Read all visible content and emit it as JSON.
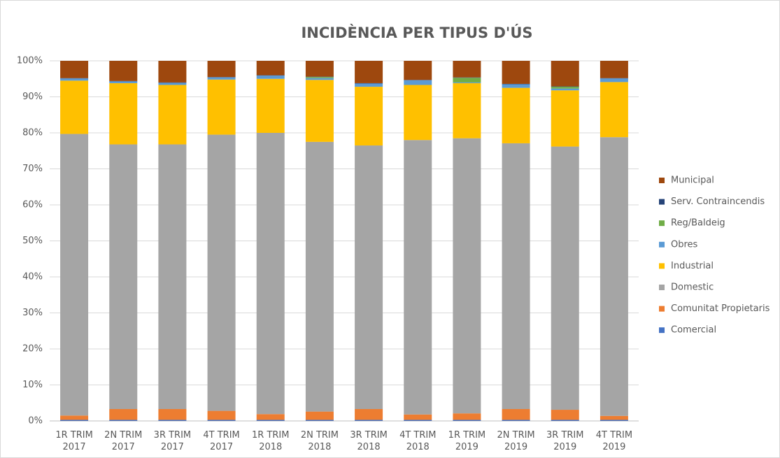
{
  "chart_data": {
    "type": "stacked_bar",
    "title": "INCIDÈNCIA PER TIPUS D'ÚS",
    "categories": [
      "1R TRIM 2017",
      "2N TRIM 2017",
      "3R TRIM 2017",
      "4T TRIM 2017",
      "1R TRIM 2018",
      "2N TRIM 2018",
      "3R TRIM 2018",
      "4T TRIM 2018",
      "1R TRIM 2019",
      "2N TRIM 2019",
      "3R TRIM 2019",
      "4T TRIM 2019"
    ],
    "series": [
      {
        "name": "Comercial",
        "color": "#4472c4",
        "values": [
          0.3,
          0.3,
          0.3,
          0.3,
          0.3,
          0.3,
          0.3,
          0.3,
          0.3,
          0.3,
          0.3,
          0.3
        ]
      },
      {
        "name": "Comunitat Propietaris",
        "color": "#ed7d31",
        "values": [
          1.2,
          3.0,
          3.0,
          2.5,
          1.6,
          2.3,
          3.0,
          1.5,
          1.8,
          3.0,
          2.8,
          1.1
        ]
      },
      {
        "name": "Domestic",
        "color": "#a5a5a5",
        "values": [
          78.2,
          73.5,
          73.5,
          76.7,
          78.1,
          74.9,
          73.2,
          76.2,
          76.4,
          73.8,
          73.1,
          77.4
        ]
      },
      {
        "name": "Industrial",
        "color": "#ffc000",
        "values": [
          14.8,
          17.0,
          16.5,
          15.3,
          15.0,
          17.2,
          16.3,
          15.3,
          15.3,
          15.4,
          15.6,
          15.3
        ]
      },
      {
        "name": "Obres",
        "color": "#5b9bd5",
        "values": [
          0.6,
          0.5,
          0.6,
          0.6,
          0.9,
          0.5,
          0.9,
          1.3,
          0.2,
          1.0,
          0.5,
          1.0
        ]
      },
      {
        "name": "Reg/Baldeig",
        "color": "#70ad47",
        "values": [
          0,
          0,
          0,
          0,
          0,
          0.3,
          0,
          0,
          1.3,
          0,
          0.5,
          0
        ]
      },
      {
        "name": "Serv. Contraincendis",
        "color": "#264478",
        "values": [
          0.1,
          0.1,
          0.1,
          0.1,
          0.1,
          0.1,
          0.1,
          0.1,
          0.1,
          0.1,
          0.1,
          0.1
        ]
      },
      {
        "name": "Municipal",
        "color": "#9e480e",
        "values": [
          4.8,
          5.6,
          6.0,
          4.5,
          4.0,
          4.4,
          6.2,
          5.3,
          4.6,
          6.4,
          7.1,
          4.8
        ]
      }
    ],
    "ylim": [
      0,
      100
    ],
    "yticks": [
      {
        "value": 0,
        "label": "0%"
      },
      {
        "value": 10,
        "label": "10%"
      },
      {
        "value": 20,
        "label": "20%"
      },
      {
        "value": 30,
        "label": "30%"
      },
      {
        "value": 40,
        "label": "40%"
      },
      {
        "value": 50,
        "label": "50%"
      },
      {
        "value": 60,
        "label": "60%"
      },
      {
        "value": 70,
        "label": "70%"
      },
      {
        "value": 80,
        "label": "80%"
      },
      {
        "value": 90,
        "label": "90%"
      },
      {
        "value": 100,
        "label": "100%"
      }
    ],
    "grid": true,
    "legend": "right"
  }
}
